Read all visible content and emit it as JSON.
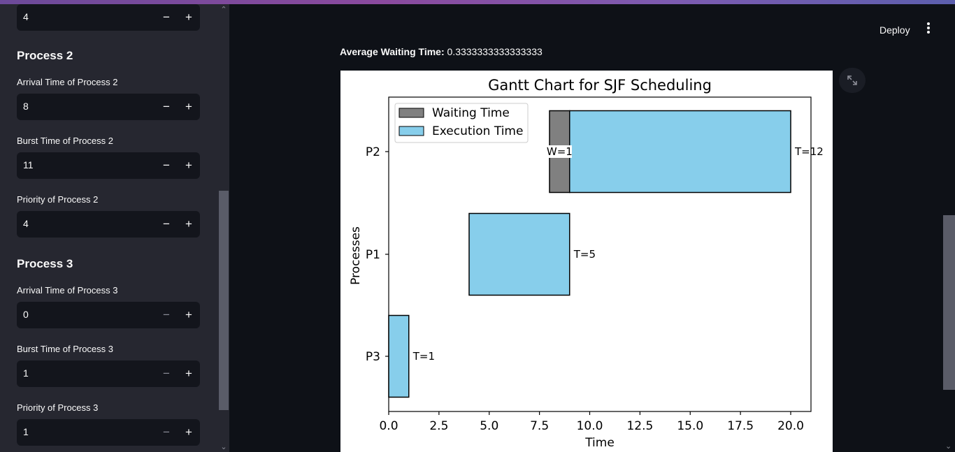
{
  "sidebar": {
    "top_input_value": "4",
    "process2": {
      "heading": "Process 2",
      "arrival_label": "Arrival Time of Process 2",
      "arrival_value": "8",
      "burst_label": "Burst Time of Process 2",
      "burst_value": "11",
      "priority_label": "Priority of Process 2",
      "priority_value": "4"
    },
    "process3": {
      "heading": "Process 3",
      "arrival_label": "Arrival Time of Process 3",
      "arrival_value": "0",
      "burst_label": "Burst Time of Process 3",
      "burst_value": "1",
      "priority_label": "Priority of Process 3",
      "priority_value": "1"
    },
    "minus_glyph": "−",
    "plus_glyph": "+"
  },
  "header": {
    "deploy_label": "Deploy"
  },
  "main": {
    "avg_label": "Average Waiting Time:",
    "avg_value": "0.3333333333333333"
  },
  "chart_data": {
    "type": "gantt",
    "title": "Gantt Chart for SJF Scheduling",
    "xlabel": "Time",
    "ylabel": "Processes",
    "xlim": [
      0,
      21
    ],
    "xticks": [
      "0.0",
      "2.5",
      "5.0",
      "7.5",
      "10.0",
      "12.5",
      "15.0",
      "17.5",
      "20.0"
    ],
    "categories": [
      "P2",
      "P1",
      "P3"
    ],
    "legend": [
      "Waiting Time",
      "Execution Time"
    ],
    "legend_position": "top-left",
    "colors": {
      "waiting": "#808080",
      "execution": "#87ceeb"
    },
    "bars": [
      {
        "process": "P2",
        "waiting_start": 8,
        "waiting": 1,
        "exec_start": 9,
        "exec_end": 20,
        "waiting_label": "W=1",
        "end_label": "T=12"
      },
      {
        "process": "P1",
        "waiting_start": 4,
        "waiting": 0,
        "exec_start": 4,
        "exec_end": 9,
        "waiting_label": "",
        "end_label": "T=5"
      },
      {
        "process": "P3",
        "waiting_start": 0,
        "waiting": 0,
        "exec_start": 0,
        "exec_end": 1,
        "waiting_label": "",
        "end_label": "T=1"
      }
    ]
  }
}
